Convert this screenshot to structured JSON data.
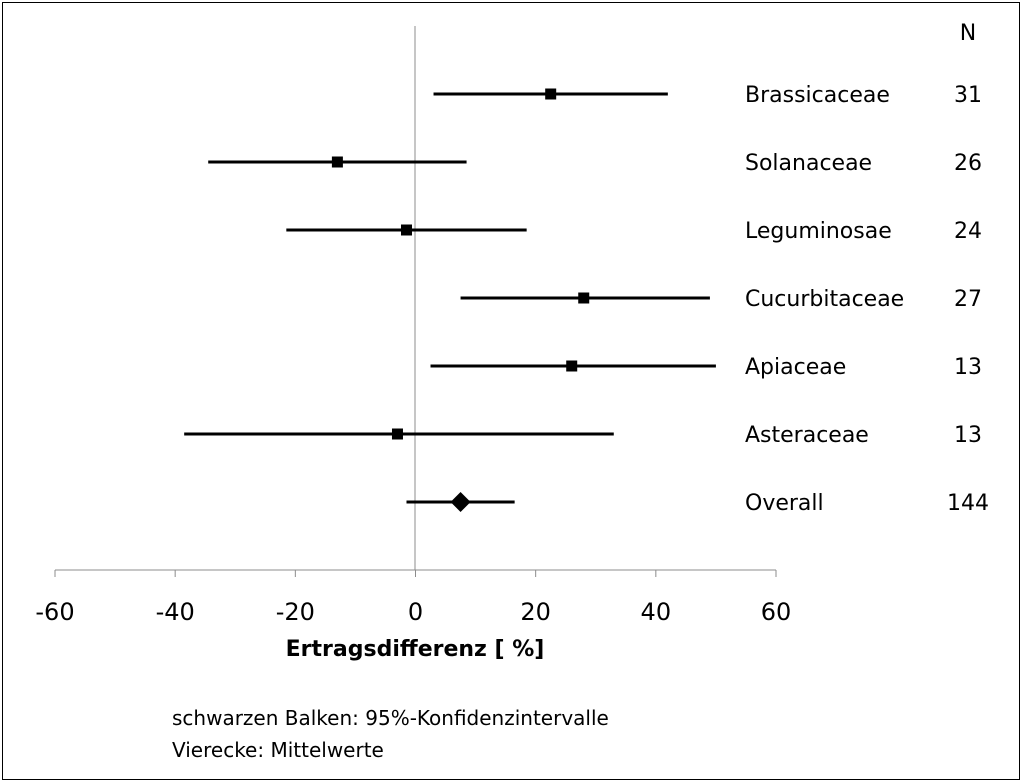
{
  "chart_data": {
    "type": "forest",
    "xlabel": "Ertragsdifferenz [ %]",
    "xlim": [
      -60,
      60
    ],
    "xticks": [
      -60,
      -40,
      -20,
      0,
      20,
      40,
      60
    ],
    "count_header": "N",
    "rows": [
      {
        "label": "Brassicaceae",
        "n": "31",
        "mean": 22.5,
        "lo": 3,
        "hi": 42,
        "marker": "square"
      },
      {
        "label": "Solanaceae",
        "n": "26",
        "mean": -13,
        "lo": -34.5,
        "hi": 8.5,
        "marker": "square"
      },
      {
        "label": "Leguminosae",
        "n": "24",
        "mean": -1.5,
        "lo": -21.5,
        "hi": 18.5,
        "marker": "square"
      },
      {
        "label": "Cucurbitaceae",
        "n": "27",
        "mean": 28,
        "lo": 7.5,
        "hi": 49,
        "marker": "square"
      },
      {
        "label": "Apiaceae",
        "n": "13",
        "mean": 26,
        "lo": 2.5,
        "hi": 50,
        "marker": "square"
      },
      {
        "label": "Asteraceae",
        "n": "13",
        "mean": -3,
        "lo": -38.5,
        "hi": 33,
        "marker": "square"
      },
      {
        "label": "Overall",
        "n": "144",
        "mean": 7.5,
        "lo": -1.5,
        "hi": 16.5,
        "marker": "diamond"
      }
    ],
    "grid": false,
    "reference_line_x": 0
  },
  "notes": [
    "schwarzen Balken: 95%-Konfidenzintervalle",
    "Vierecke: Mittelwerte"
  ]
}
